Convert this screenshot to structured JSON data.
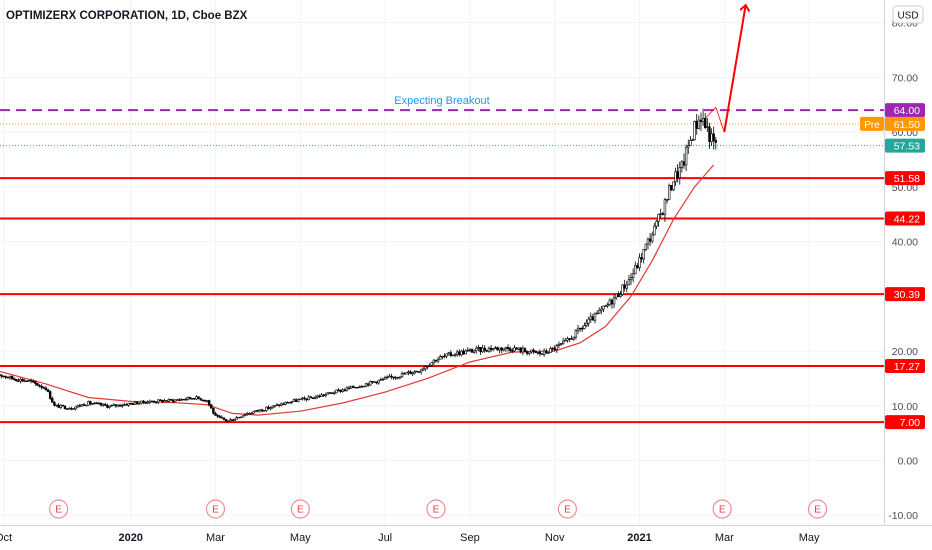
{
  "header": {
    "title": "OPTIMIZERX CORPORATION, 1D, Cboe BZX",
    "currency_button": "USD"
  },
  "annotation": {
    "text": "Expecting Breakout",
    "color": "#2196f3"
  },
  "colors": {
    "support_line": "#ff0000",
    "breakout_line": "#9c27b0",
    "moving_average": "#e53935",
    "candle_up": "#000000",
    "candle_down": "#000000",
    "premarket_tag": "#ff9800",
    "last_price_tag": "#26a69a",
    "price_tag_red": "#ff0000",
    "price_tag_purple": "#9c27b0"
  },
  "chart_data": {
    "type": "candlestick",
    "y_axis": {
      "min": -12,
      "max": 83,
      "ticks": [
        {
          "value": -10,
          "label": "-10.00"
        },
        {
          "value": 0,
          "label": "0.00"
        },
        {
          "value": 10,
          "label": "10.00"
        },
        {
          "value": 20,
          "label": "20.00"
        },
        {
          "value": 30,
          "label": "30.00"
        },
        {
          "value": 40,
          "label": "40.00"
        },
        {
          "value": 50,
          "label": "50.00"
        },
        {
          "value": 60,
          "label": "60.00"
        },
        {
          "value": 70,
          "label": "70.00"
        },
        {
          "value": 80,
          "label": "80.00"
        }
      ]
    },
    "x_axis": {
      "labels": [
        {
          "text": "Oct",
          "month": 0,
          "bold": false
        },
        {
          "text": "2020",
          "month": 3,
          "bold": true
        },
        {
          "text": "Mar",
          "month": 5,
          "bold": false
        },
        {
          "text": "May",
          "month": 7,
          "bold": false
        },
        {
          "text": "Jul",
          "month": 9,
          "bold": false
        },
        {
          "text": "Sep",
          "month": 11,
          "bold": false
        },
        {
          "text": "Nov",
          "month": 13,
          "bold": false
        },
        {
          "text": "2021",
          "month": 15,
          "bold": true
        },
        {
          "text": "Mar",
          "month": 17,
          "bold": false
        },
        {
          "text": "May",
          "month": 19,
          "bold": false
        }
      ]
    },
    "earnings_markers": [
      {
        "label": "E",
        "month": 1.3
      },
      {
        "label": "E",
        "month": 5.0
      },
      {
        "label": "E",
        "month": 7.0
      },
      {
        "label": "E",
        "month": 10.2
      },
      {
        "label": "E",
        "month": 13.3
      },
      {
        "label": "E",
        "month": 16.95
      },
      {
        "label": "E",
        "month": 19.2
      }
    ],
    "horizontal_levels": [
      {
        "value": 7.0,
        "label": "7.00",
        "style": "support"
      },
      {
        "value": 17.27,
        "label": "17.27",
        "style": "support"
      },
      {
        "value": 30.39,
        "label": "30.39",
        "style": "support"
      },
      {
        "value": 44.22,
        "label": "44.22",
        "style": "support"
      },
      {
        "value": 51.58,
        "label": "51.58",
        "style": "support"
      },
      {
        "value": 64.0,
        "label": "64.00",
        "style": "breakout"
      }
    ],
    "premarket": {
      "label": "Pre",
      "value": 61.5,
      "value_label": "61.50"
    },
    "last_price": {
      "value": 57.53,
      "value_label": "57.53"
    },
    "price_path": [
      [
        -0.2,
        16.0
      ],
      [
        0.2,
        15.0
      ],
      [
        0.6,
        14.5
      ],
      [
        1.0,
        13.2
      ],
      [
        1.2,
        10.0
      ],
      [
        1.6,
        9.6
      ],
      [
        2.0,
        10.5
      ],
      [
        2.5,
        9.9
      ],
      [
        3.0,
        10.4
      ],
      [
        3.5,
        10.8
      ],
      [
        4.0,
        11.0
      ],
      [
        4.5,
        11.5
      ],
      [
        4.8,
        11.0
      ],
      [
        5.0,
        8.0
      ],
      [
        5.3,
        7.2
      ],
      [
        5.7,
        8.5
      ],
      [
        6.2,
        9.5
      ],
      [
        6.8,
        10.8
      ],
      [
        7.3,
        11.5
      ],
      [
        7.8,
        12.5
      ],
      [
        8.3,
        13.5
      ],
      [
        8.8,
        14.5
      ],
      [
        9.3,
        15.5
      ],
      [
        9.8,
        16.5
      ],
      [
        10.2,
        18.5
      ],
      [
        10.6,
        19.5
      ],
      [
        11.0,
        20.0
      ],
      [
        11.5,
        20.5
      ],
      [
        12.0,
        20.5
      ],
      [
        12.3,
        20.0
      ],
      [
        12.7,
        19.5
      ],
      [
        13.0,
        20.5
      ],
      [
        13.3,
        21.8
      ],
      [
        13.6,
        24.0
      ],
      [
        13.9,
        26.0
      ],
      [
        14.2,
        28.0
      ],
      [
        14.5,
        30.5
      ],
      [
        14.8,
        33.5
      ],
      [
        15.0,
        36.5
      ],
      [
        15.2,
        40.0
      ],
      [
        15.4,
        43.0
      ],
      [
        15.6,
        47.0
      ],
      [
        15.8,
        51.5
      ],
      [
        16.0,
        53.5
      ],
      [
        16.15,
        57.5
      ],
      [
        16.3,
        61.0
      ],
      [
        16.45,
        63.0
      ],
      [
        16.6,
        60.5
      ],
      [
        16.7,
        58.5
      ],
      [
        16.8,
        57.5
      ]
    ],
    "moving_average": [
      [
        -0.2,
        16.5
      ],
      [
        1.0,
        14.0
      ],
      [
        2.0,
        11.5
      ],
      [
        3.0,
        10.8
      ],
      [
        4.0,
        10.6
      ],
      [
        4.8,
        10.2
      ],
      [
        5.4,
        8.6
      ],
      [
        6.0,
        8.3
      ],
      [
        7.0,
        9.0
      ],
      [
        8.0,
        10.5
      ],
      [
        9.0,
        12.5
      ],
      [
        10.0,
        15.0
      ],
      [
        11.0,
        18.0
      ],
      [
        12.0,
        19.8
      ],
      [
        13.0,
        20.0
      ],
      [
        13.6,
        21.5
      ],
      [
        14.2,
        24.5
      ],
      [
        14.8,
        30.0
      ],
      [
        15.3,
        36.5
      ],
      [
        15.8,
        44.0
      ],
      [
        16.3,
        50.0
      ],
      [
        16.75,
        54.0
      ]
    ],
    "projection_path": [
      [
        16.55,
        62.5
      ],
      [
        16.8,
        64.5
      ],
      [
        17.0,
        60.0
      ],
      [
        17.5,
        83.0
      ]
    ]
  }
}
